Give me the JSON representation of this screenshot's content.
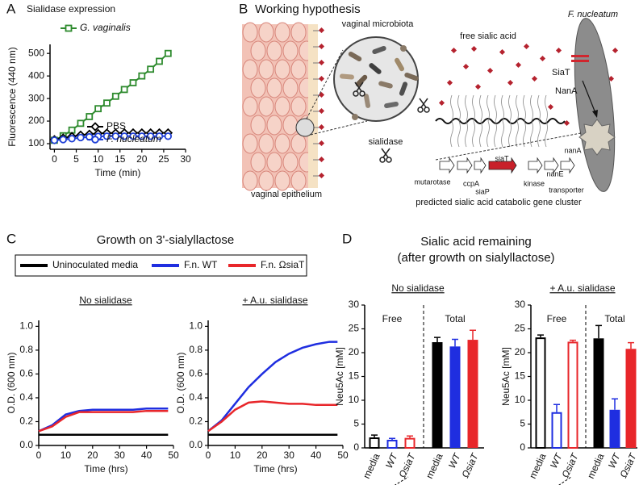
{
  "panel_labels": [
    "A",
    "B",
    "C",
    "D"
  ],
  "figure_titles": {
    "c": "Growth on 3'-sialyllactose",
    "d": "Sialic acid remaining",
    "d_sub": "(after growth on sialyllactose)"
  },
  "diagram": {
    "title": "Working hypothesis",
    "texts": [
      "vaginal microbiota",
      "free sialic acid",
      "F. nucleatum",
      "SiaT",
      "NanA",
      "sialidase",
      "vaginal epithelium",
      "mutarotase",
      "ccpA",
      "siaP",
      "siaT",
      "kinase",
      "nanA",
      "nanE",
      "transporter",
      "predicted sialic acid catabolic gene cluster"
    ]
  },
  "chart_data": [
    {
      "type": "line",
      "title": "Sialidase expression",
      "xlabel": "Time (min)",
      "ylabel": "Fluorescence (440 nm)",
      "x": [
        0,
        2,
        4,
        6,
        8,
        10,
        12,
        14,
        16,
        18,
        20,
        22,
        24,
        26
      ],
      "xlim": [
        -1,
        30
      ],
      "xticks": [
        0,
        5,
        10,
        15,
        20,
        25,
        30
      ],
      "ylim": [
        75,
        540
      ],
      "yticks": [
        100,
        200,
        300,
        400,
        500
      ],
      "series": [
        {
          "name": "G. vaginalis",
          "color": "#2e8b2e",
          "marker": "square",
          "values": [
            115,
            135,
            160,
            190,
            220,
            255,
            280,
            310,
            340,
            370,
            400,
            430,
            465,
            500
          ]
        },
        {
          "name": "PBS",
          "color": "#000000",
          "marker": "diamond",
          "values": [
            118,
            125,
            132,
            138,
            142,
            145,
            147,
            147,
            148,
            148,
            148,
            148,
            148,
            148
          ]
        },
        {
          "name": "F. nucleatum",
          "color": "#1f3fd6",
          "marker": "circle",
          "values": [
            115,
            118,
            122,
            127,
            130,
            132,
            133,
            133,
            133,
            133,
            133,
            133,
            133,
            133
          ]
        }
      ]
    },
    {
      "type": "line",
      "title": "No sialidase",
      "xlabel": "Time (hrs)",
      "ylabel": "O.D. (600 nm)",
      "x": [
        0,
        5,
        10,
        15,
        20,
        25,
        30,
        35,
        40,
        45,
        48
      ],
      "xlim": [
        0,
        50
      ],
      "xticks": [
        0,
        10,
        20,
        30,
        40,
        50
      ],
      "ylim": [
        0,
        1.05
      ],
      "yticks": [
        {
          "value": 0,
          "label": "0.0"
        },
        0.2,
        0.4,
        0.6,
        0.8,
        {
          "value": 1,
          "label": "1.0"
        }
      ],
      "series": [
        {
          "name": "Uninoculated media",
          "color": "#000000",
          "values": [
            0.09,
            0.09,
            0.09,
            0.09,
            0.09,
            0.09,
            0.09,
            0.09,
            0.09,
            0.09,
            0.09
          ]
        },
        {
          "name": "F.n. WT",
          "color": "#1f2ee0",
          "values": [
            0.12,
            0.17,
            0.26,
            0.29,
            0.3,
            0.3,
            0.3,
            0.3,
            0.31,
            0.31,
            0.31
          ]
        },
        {
          "name": "F.n. ΩsiaT",
          "color": "#e8262a",
          "values": [
            0.12,
            0.16,
            0.24,
            0.28,
            0.28,
            0.28,
            0.28,
            0.28,
            0.29,
            0.29,
            0.29
          ]
        }
      ]
    },
    {
      "type": "line",
      "title": "+ A.u. sialidase",
      "xlabel": "Time (hrs)",
      "ylabel": "O.D. (600 nm)",
      "x": [
        0,
        5,
        10,
        15,
        20,
        25,
        30,
        35,
        40,
        45,
        48
      ],
      "xlim": [
        0,
        50
      ],
      "xticks": [
        0,
        10,
        20,
        30,
        40,
        50
      ],
      "ylim": [
        0,
        1.05
      ],
      "yticks": [
        {
          "value": 0,
          "label": "0.0"
        },
        0.2,
        0.4,
        0.6,
        0.8,
        {
          "value": 1,
          "label": "1.0"
        }
      ],
      "series": [
        {
          "name": "Uninoculated media",
          "color": "#000000",
          "values": [
            0.09,
            0.09,
            0.09,
            0.09,
            0.09,
            0.09,
            0.09,
            0.09,
            0.09,
            0.09,
            0.09
          ]
        },
        {
          "name": "F.n. WT",
          "color": "#1f2ee0",
          "values": [
            0.12,
            0.21,
            0.35,
            0.49,
            0.6,
            0.7,
            0.77,
            0.82,
            0.85,
            0.87,
            0.87
          ]
        },
        {
          "name": "F.n. ΩsiaT",
          "color": "#e8262a",
          "values": [
            0.12,
            0.2,
            0.3,
            0.36,
            0.37,
            0.36,
            0.35,
            0.35,
            0.34,
            0.34,
            0.34
          ]
        }
      ]
    },
    {
      "type": "bar",
      "title": "No sialidase",
      "ylabel": "Neu5Ac [mM]",
      "groups": [
        "Free",
        "Total"
      ],
      "categories": [
        "media",
        "WT",
        "ΩsiaT",
        "media",
        "WT",
        "ΩsiaT"
      ],
      "values": [
        2.2,
        1.7,
        2.1,
        22.2,
        21.3,
        22.7
      ],
      "errors": [
        0.5,
        0.3,
        0.4,
        1.0,
        1.5,
        2.0
      ],
      "colors": [
        "#000000",
        "#1f2ee0",
        "#e8262a",
        "#000000",
        "#1f2ee0",
        "#e8262a"
      ],
      "hollow": [
        true,
        true,
        true,
        false,
        false,
        false
      ],
      "ylim": [
        0,
        30
      ],
      "yticks": [
        0,
        5,
        10,
        15,
        20,
        25,
        30
      ]
    },
    {
      "type": "bar",
      "title": "+ A.u. sialidase",
      "ylabel": "Neu5Ac [mM]",
      "groups": [
        "Free",
        "Total"
      ],
      "categories": [
        "media",
        "WT",
        "ΩsiaT",
        "media",
        "WT",
        "ΩsiaT"
      ],
      "values": [
        23.2,
        7.5,
        22.3,
        23.0,
        8.0,
        20.8
      ],
      "errors": [
        0.5,
        1.6,
        0.3,
        2.7,
        2.3,
        1.3
      ],
      "colors": [
        "#000000",
        "#1f2ee0",
        "#e8262a",
        "#000000",
        "#1f2ee0",
        "#e8262a"
      ],
      "hollow": [
        true,
        true,
        true,
        false,
        false,
        false
      ],
      "ylim": [
        0,
        30
      ],
      "yticks": [
        0,
        5,
        10,
        15,
        20,
        25,
        30
      ]
    }
  ]
}
